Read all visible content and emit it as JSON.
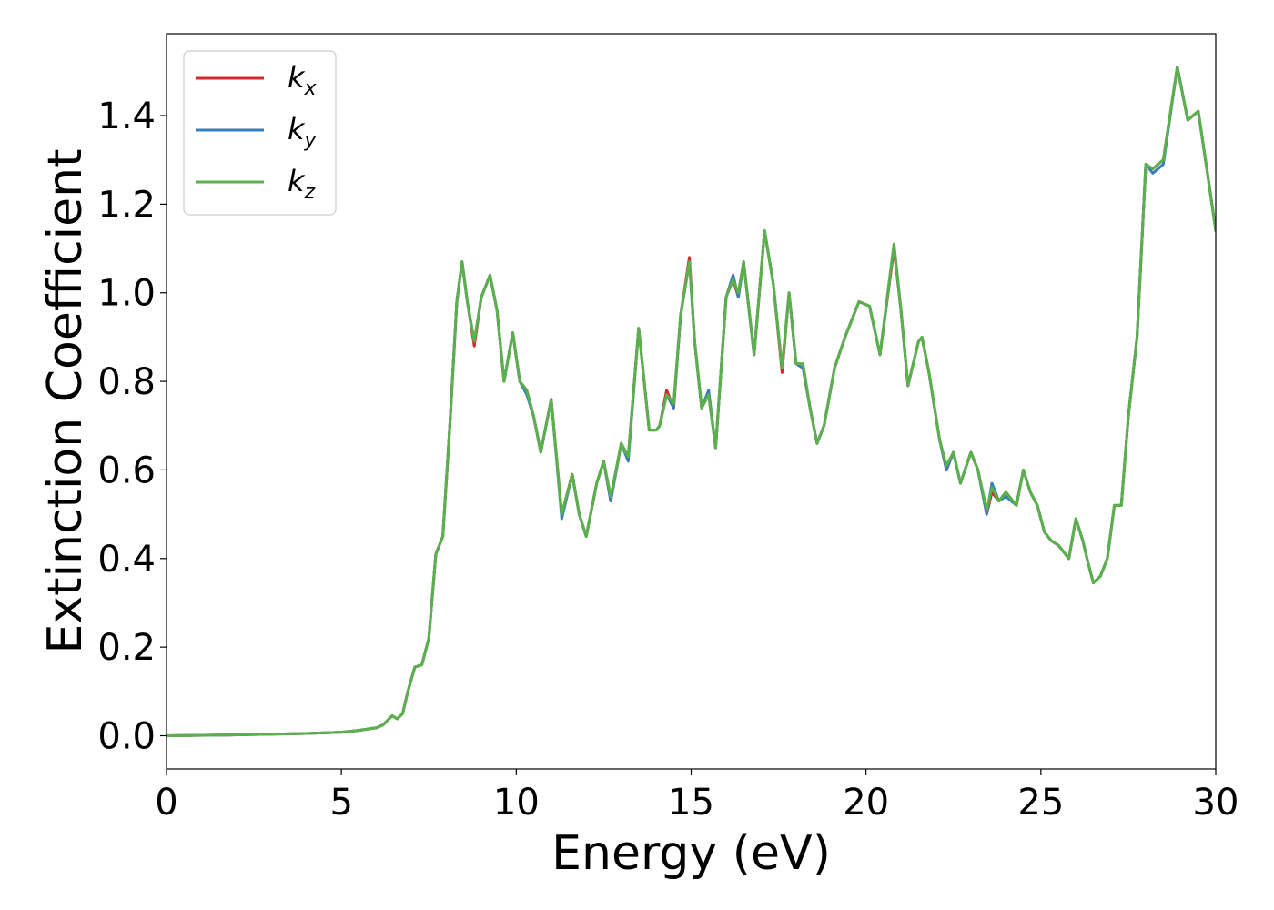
{
  "chart_data": {
    "type": "line",
    "title": "",
    "xlabel": "Energy (eV)",
    "ylabel": "Extinction Coefficient",
    "xlim": [
      0,
      30
    ],
    "ylim": [
      -0.075,
      1.585
    ],
    "grid": false,
    "legend_position": "top-left",
    "xticks": [
      0,
      5,
      10,
      15,
      20,
      25,
      30
    ],
    "xtick_labels": [
      "0",
      "5",
      "10",
      "15",
      "20",
      "25",
      "30"
    ],
    "yticks": [
      0.0,
      0.2,
      0.4,
      0.6,
      0.8,
      1.0,
      1.2,
      1.4
    ],
    "ytick_labels": [
      "0.0",
      "0.2",
      "0.4",
      "0.6",
      "0.8",
      "1.0",
      "1.2",
      "1.4"
    ],
    "x": [
      0,
      2,
      4,
      5,
      5.5,
      6.0,
      6.2,
      6.45,
      6.6,
      6.75,
      6.9,
      7.1,
      7.3,
      7.5,
      7.7,
      7.9,
      8.1,
      8.3,
      8.45,
      8.6,
      8.8,
      9.0,
      9.25,
      9.45,
      9.65,
      9.9,
      10.1,
      10.3,
      10.5,
      10.7,
      11.0,
      11.3,
      11.6,
      11.8,
      12.0,
      12.3,
      12.5,
      12.7,
      13.0,
      13.2,
      13.5,
      13.8,
      14.0,
      14.1,
      14.3,
      14.5,
      14.7,
      14.95,
      15.1,
      15.3,
      15.5,
      15.7,
      16.0,
      16.2,
      16.35,
      16.5,
      16.8,
      17.1,
      17.35,
      17.6,
      17.8,
      18.0,
      18.2,
      18.4,
      18.6,
      18.8,
      19.1,
      19.4,
      19.8,
      20.1,
      20.4,
      20.8,
      21.0,
      21.2,
      21.5,
      21.6,
      21.8,
      22.1,
      22.3,
      22.5,
      22.7,
      23.0,
      23.2,
      23.45,
      23.6,
      23.8,
      24.0,
      24.3,
      24.5,
      24.7,
      24.9,
      25.1,
      25.3,
      25.5,
      25.8,
      26.0,
      26.2,
      26.35,
      26.5,
      26.7,
      26.9,
      27.1,
      27.3,
      27.5,
      27.75,
      28.0,
      28.2,
      28.5,
      28.9,
      29.2,
      29.5,
      29.8,
      30.0
    ],
    "series": [
      {
        "name": "k_x",
        "name_base": "k",
        "name_sub": "x",
        "color": "#d62728",
        "y": [
          0.0,
          0.002,
          0.005,
          0.008,
          0.012,
          0.018,
          0.025,
          0.045,
          0.038,
          0.05,
          0.1,
          0.155,
          0.16,
          0.22,
          0.41,
          0.45,
          0.7,
          0.98,
          1.07,
          0.98,
          0.88,
          0.99,
          1.04,
          0.96,
          0.8,
          0.91,
          0.8,
          0.78,
          0.72,
          0.64,
          0.76,
          0.5,
          0.59,
          0.5,
          0.45,
          0.57,
          0.62,
          0.53,
          0.66,
          0.63,
          0.92,
          0.69,
          0.69,
          0.7,
          0.78,
          0.74,
          0.95,
          1.08,
          0.89,
          0.74,
          0.77,
          0.65,
          0.99,
          1.03,
          0.99,
          1.07,
          0.86,
          1.14,
          1.02,
          0.82,
          1.0,
          0.84,
          0.83,
          0.74,
          0.66,
          0.7,
          0.83,
          0.9,
          0.98,
          0.97,
          0.86,
          1.1,
          0.96,
          0.79,
          0.89,
          0.9,
          0.82,
          0.67,
          0.6,
          0.64,
          0.57,
          0.64,
          0.6,
          0.5,
          0.55,
          0.53,
          0.55,
          0.52,
          0.6,
          0.55,
          0.52,
          0.46,
          0.44,
          0.43,
          0.4,
          0.49,
          0.44,
          0.39,
          0.345,
          0.36,
          0.4,
          0.52,
          0.52,
          0.72,
          0.9,
          1.29,
          1.28,
          1.3,
          1.51,
          1.39,
          1.41,
          1.25,
          1.14
        ]
      },
      {
        "name": "k_y",
        "name_base": "k",
        "name_sub": "y",
        "color": "#377eb8",
        "y": [
          0.0,
          0.002,
          0.005,
          0.008,
          0.012,
          0.018,
          0.025,
          0.045,
          0.038,
          0.05,
          0.1,
          0.155,
          0.16,
          0.22,
          0.41,
          0.45,
          0.7,
          0.98,
          1.07,
          0.98,
          0.89,
          0.99,
          1.04,
          0.96,
          0.8,
          0.91,
          0.8,
          0.77,
          0.72,
          0.64,
          0.76,
          0.49,
          0.59,
          0.5,
          0.45,
          0.57,
          0.62,
          0.53,
          0.66,
          0.62,
          0.92,
          0.69,
          0.69,
          0.7,
          0.77,
          0.74,
          0.95,
          1.07,
          0.89,
          0.74,
          0.78,
          0.65,
          0.99,
          1.04,
          0.99,
          1.07,
          0.86,
          1.14,
          1.02,
          0.83,
          1.0,
          0.84,
          0.83,
          0.74,
          0.66,
          0.7,
          0.83,
          0.9,
          0.98,
          0.97,
          0.86,
          1.11,
          0.96,
          0.79,
          0.89,
          0.9,
          0.82,
          0.67,
          0.6,
          0.64,
          0.57,
          0.64,
          0.6,
          0.5,
          0.57,
          0.53,
          0.54,
          0.52,
          0.6,
          0.55,
          0.52,
          0.46,
          0.44,
          0.43,
          0.4,
          0.49,
          0.44,
          0.39,
          0.345,
          0.36,
          0.4,
          0.52,
          0.52,
          0.72,
          0.9,
          1.29,
          1.27,
          1.29,
          1.51,
          1.39,
          1.41,
          1.25,
          1.14
        ]
      },
      {
        "name": "k_z",
        "name_base": "k",
        "name_sub": "z",
        "color": "#5ab04b",
        "y": [
          0.0,
          0.002,
          0.005,
          0.008,
          0.012,
          0.018,
          0.025,
          0.045,
          0.038,
          0.05,
          0.1,
          0.155,
          0.16,
          0.22,
          0.41,
          0.45,
          0.7,
          0.98,
          1.07,
          0.98,
          0.89,
          0.99,
          1.04,
          0.96,
          0.8,
          0.91,
          0.8,
          0.78,
          0.72,
          0.64,
          0.76,
          0.5,
          0.59,
          0.5,
          0.45,
          0.57,
          0.62,
          0.54,
          0.66,
          0.63,
          0.92,
          0.69,
          0.69,
          0.7,
          0.77,
          0.75,
          0.95,
          1.07,
          0.89,
          0.74,
          0.77,
          0.65,
          0.99,
          1.03,
          1.0,
          1.07,
          0.86,
          1.14,
          1.02,
          0.83,
          1.0,
          0.84,
          0.84,
          0.74,
          0.66,
          0.7,
          0.83,
          0.9,
          0.98,
          0.97,
          0.86,
          1.11,
          0.96,
          0.79,
          0.89,
          0.9,
          0.82,
          0.67,
          0.61,
          0.64,
          0.57,
          0.64,
          0.6,
          0.51,
          0.56,
          0.53,
          0.55,
          0.52,
          0.6,
          0.55,
          0.52,
          0.46,
          0.44,
          0.43,
          0.4,
          0.49,
          0.44,
          0.39,
          0.345,
          0.36,
          0.4,
          0.52,
          0.52,
          0.72,
          0.9,
          1.29,
          1.28,
          1.3,
          1.51,
          1.39,
          1.41,
          1.25,
          1.14
        ]
      }
    ]
  }
}
